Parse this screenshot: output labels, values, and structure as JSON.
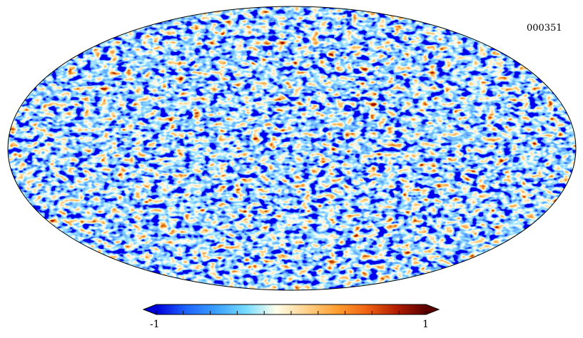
{
  "map": {
    "identifier": "000351",
    "projection": "mollweide",
    "noise_seed": 351
  },
  "colorbar": {
    "min_label": "-1",
    "max_label": "1",
    "min": -1,
    "max": 1,
    "tick_count": 11,
    "colors": [
      "#0000d8",
      "#1e64ff",
      "#3ca0ff",
      "#78dcff",
      "#ffffea",
      "#ffd28c",
      "#ffa032",
      "#f06414",
      "#b41e00",
      "#5a0000"
    ]
  }
}
